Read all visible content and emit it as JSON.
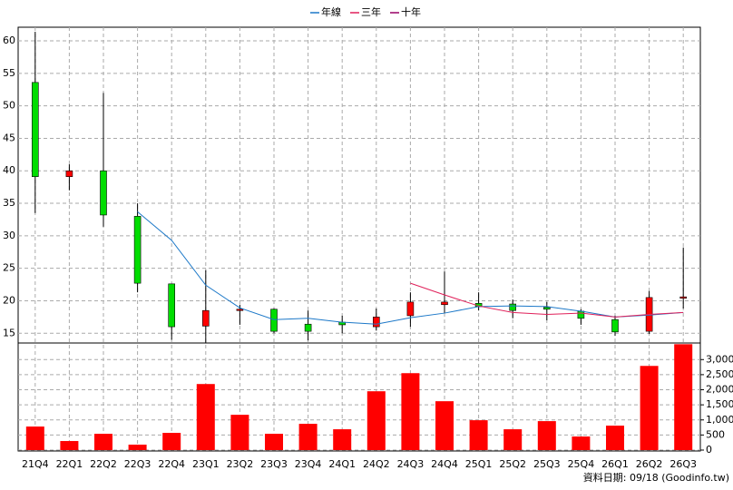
{
  "chart_data": [
    {
      "type": "candlestick",
      "categories": [
        "21Q4",
        "22Q1",
        "22Q2",
        "22Q3",
        "22Q4",
        "23Q1",
        "23Q2",
        "23Q3",
        "23Q4",
        "24Q1",
        "24Q2",
        "24Q3",
        "24Q4",
        "25Q1",
        "25Q2",
        "25Q3",
        "25Q4",
        "26Q1",
        "26Q2",
        "26Q3"
      ],
      "open": [
        53.6,
        39.1,
        40.0,
        33.0,
        22.6,
        16.1,
        18.5,
        18.7,
        16.4,
        16.7,
        16.0,
        17.7,
        19.4,
        19.6,
        19.5,
        19.0,
        18.4,
        17.1,
        15.3,
        20.5
      ],
      "high": [
        61.4,
        41.0,
        52.0,
        35.0,
        22.6,
        24.7,
        19.4,
        18.8,
        18.5,
        17.7,
        18.8,
        21.3,
        24.5,
        21.3,
        20.2,
        19.8,
        18.7,
        17.7,
        21.5,
        28.2
      ],
      "low": [
        33.5,
        37.0,
        31.4,
        21.3,
        14.0,
        13.5,
        16.3,
        15.0,
        13.9,
        15.0,
        15.4,
        16.0,
        18.1,
        18.5,
        17.3,
        17.0,
        16.3,
        14.6,
        14.9,
        18.8
      ],
      "close": [
        39.1,
        40.0,
        33.2,
        22.7,
        16.0,
        18.5,
        18.7,
        15.3,
        15.3,
        16.3,
        17.5,
        19.8,
        19.8,
        19.1,
        18.5,
        18.7,
        17.3,
        15.2,
        20.5,
        20.6
      ],
      "up_color": "#ff0000",
      "down_color": "#00dd00",
      "series": [
        {
          "name": "年線",
          "color": "#1c78c8",
          "values": [
            null,
            null,
            null,
            33.7,
            29.3,
            22.4,
            18.9,
            17.1,
            17.3,
            16.7,
            16.4,
            17.4,
            18.1,
            19.1,
            19.2,
            19.1,
            18.4,
            17.5,
            17.8,
            18.2
          ]
        },
        {
          "name": "三年",
          "color": "#e0205a",
          "values": [
            null,
            null,
            null,
            null,
            null,
            null,
            null,
            null,
            null,
            null,
            null,
            22.7,
            20.9,
            19.2,
            18.2,
            17.9,
            18.1,
            17.5,
            17.9,
            18.2
          ]
        },
        {
          "name": "十年",
          "color": "#990066",
          "values": [
            null,
            null,
            null,
            null,
            null,
            null,
            null,
            null,
            null,
            null,
            null,
            null,
            null,
            null,
            null,
            null,
            null,
            null,
            null,
            null
          ]
        }
      ],
      "ylim": [
        13.5,
        62.1
      ],
      "yticks": [
        15,
        20,
        25,
        30,
        35,
        40,
        45,
        50,
        55,
        60
      ],
      "grid": true
    },
    {
      "type": "bar",
      "values": [
        780,
        300,
        540,
        180,
        570,
        2190,
        1170,
        540,
        870,
        690,
        1950,
        2550,
        1620,
        990,
        690,
        960,
        450,
        810,
        2790,
        3510
      ],
      "color": "#ff0000",
      "ylim": [
        0,
        3550
      ],
      "yticks": [
        0,
        500,
        {
          "value": 1000,
          "label": "1,000"
        },
        {
          "value": 1500,
          "label": "1,500"
        },
        {
          "value": 2000,
          "label": "2,000"
        },
        {
          "value": 2500,
          "label": "2,500"
        },
        {
          "value": 3000,
          "label": "3,000"
        }
      ],
      "grid": true
    }
  ],
  "source": "資料日期: 09/18 (Goodinfo.tw)"
}
